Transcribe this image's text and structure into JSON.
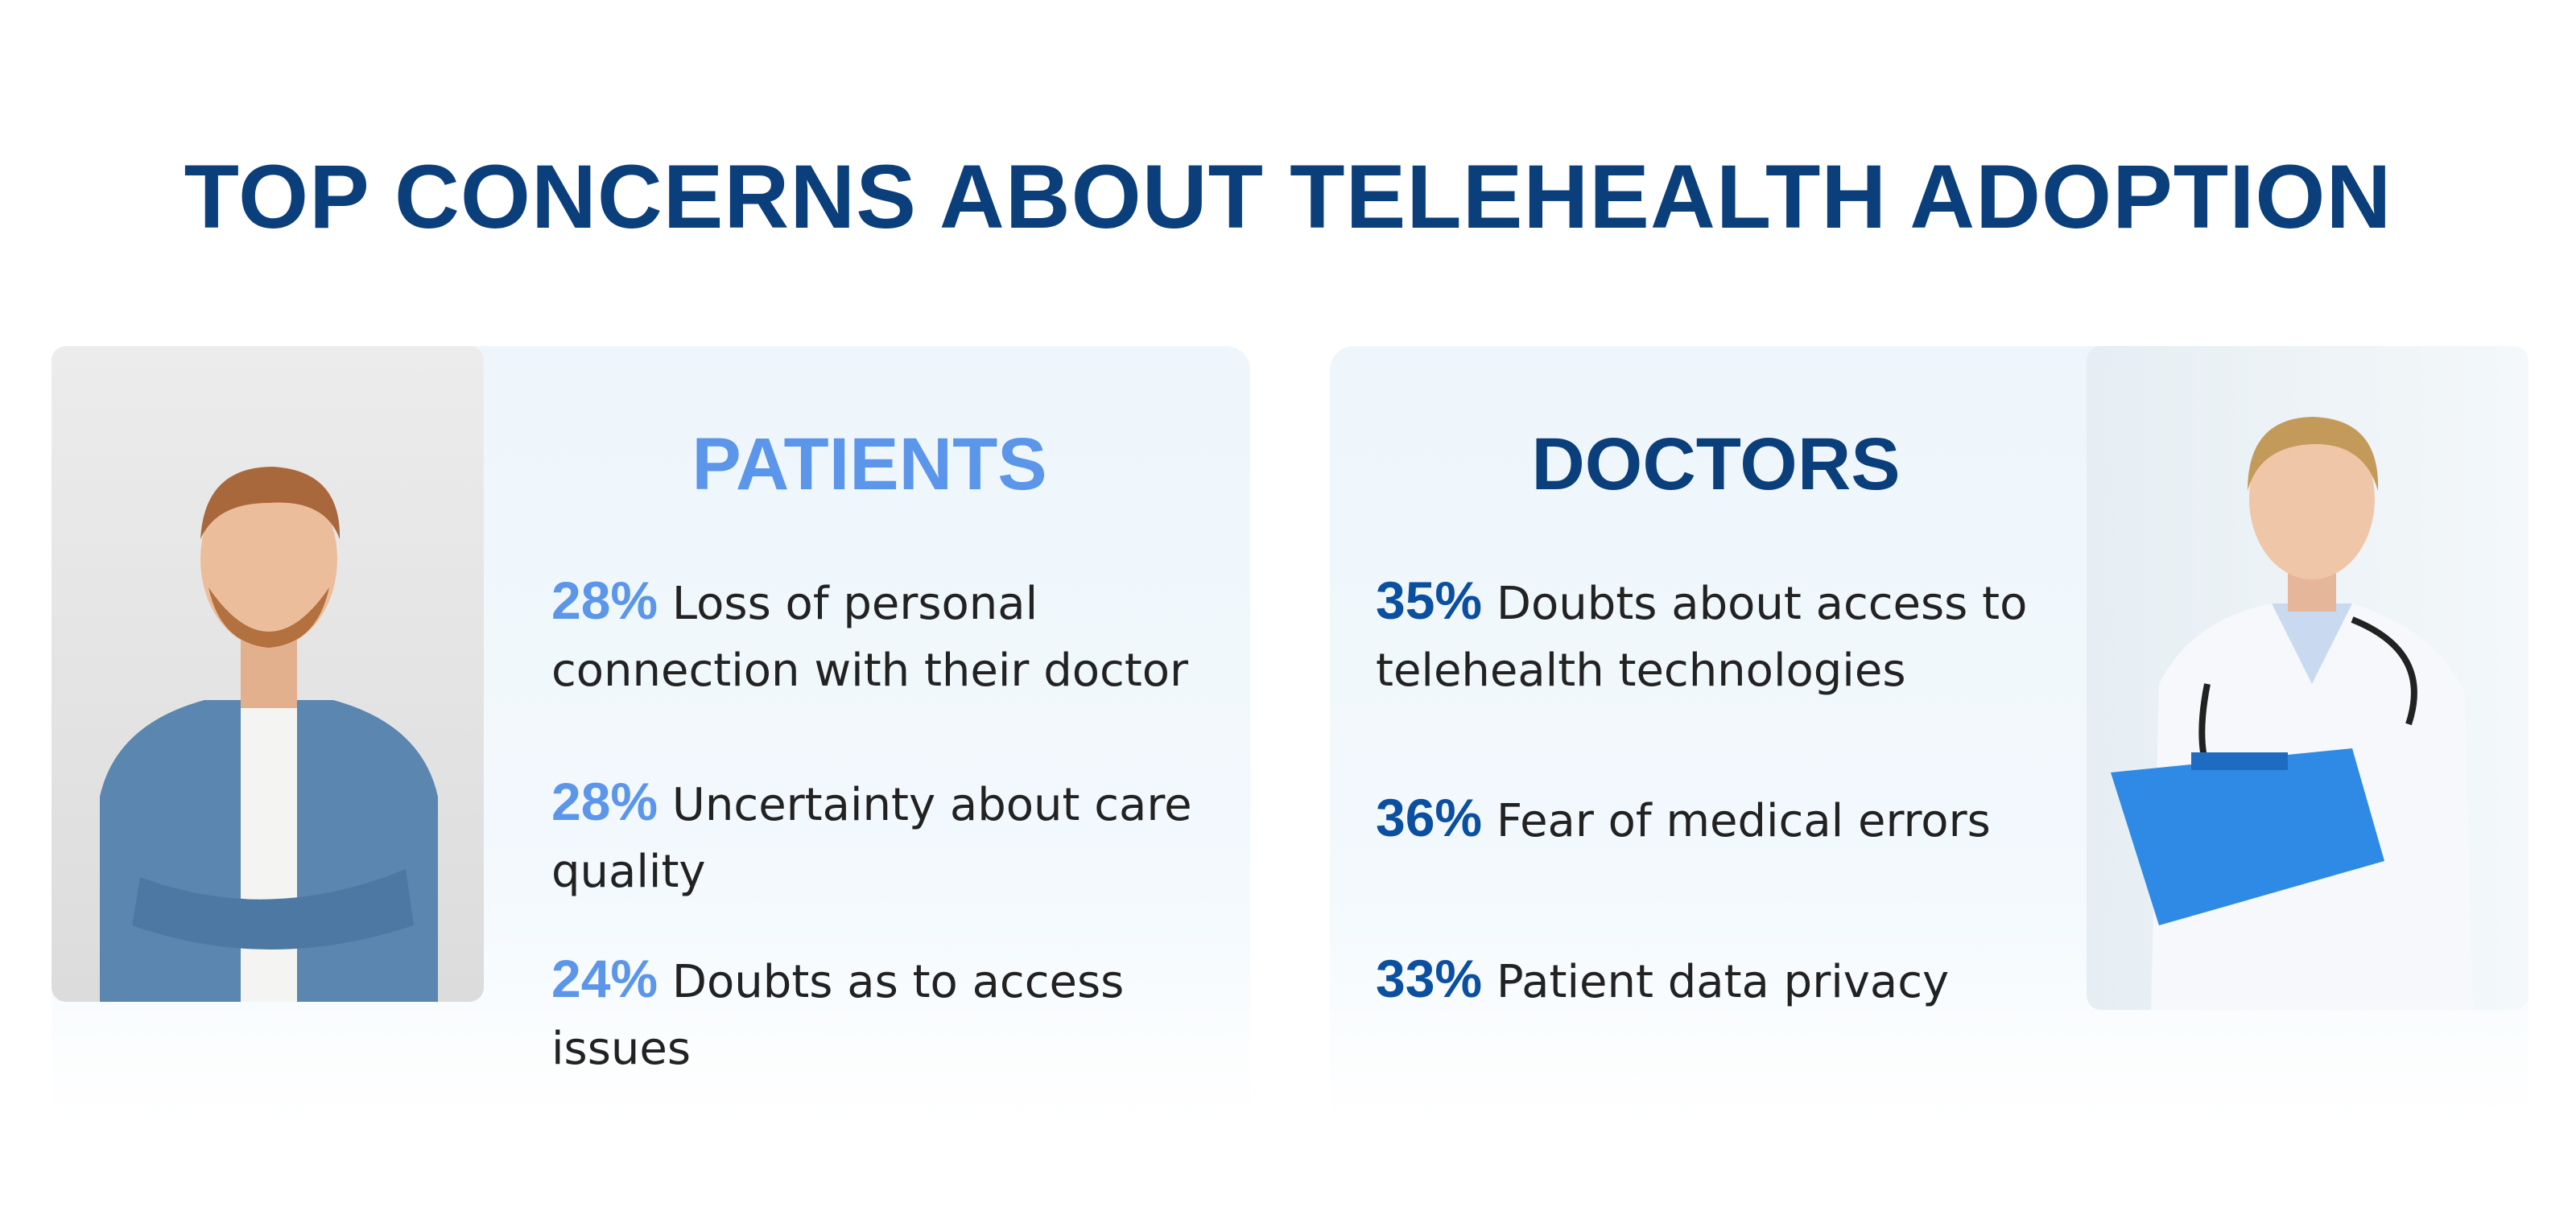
{
  "header": {
    "title": "TOP CONCERNS ABOUT TELEHEALTH ADOPTION"
  },
  "panels": [
    {
      "title": "PATIENTS",
      "items": [
        {
          "percent": "28%",
          "text": "Loss of personal connection with their doctor"
        },
        {
          "percent": "28%",
          "text": "Uncertainty about care quality"
        },
        {
          "percent": "24%",
          "text": "Doubts as to access issues"
        }
      ]
    },
    {
      "title": "DOCTORS",
      "items": [
        {
          "percent": "35%",
          "text": "Doubts about access to telehealth technologies"
        },
        {
          "percent": "36%",
          "text": "Fear of medical errors"
        },
        {
          "percent": "33%",
          "text": "Patient data privacy"
        }
      ]
    }
  ]
}
